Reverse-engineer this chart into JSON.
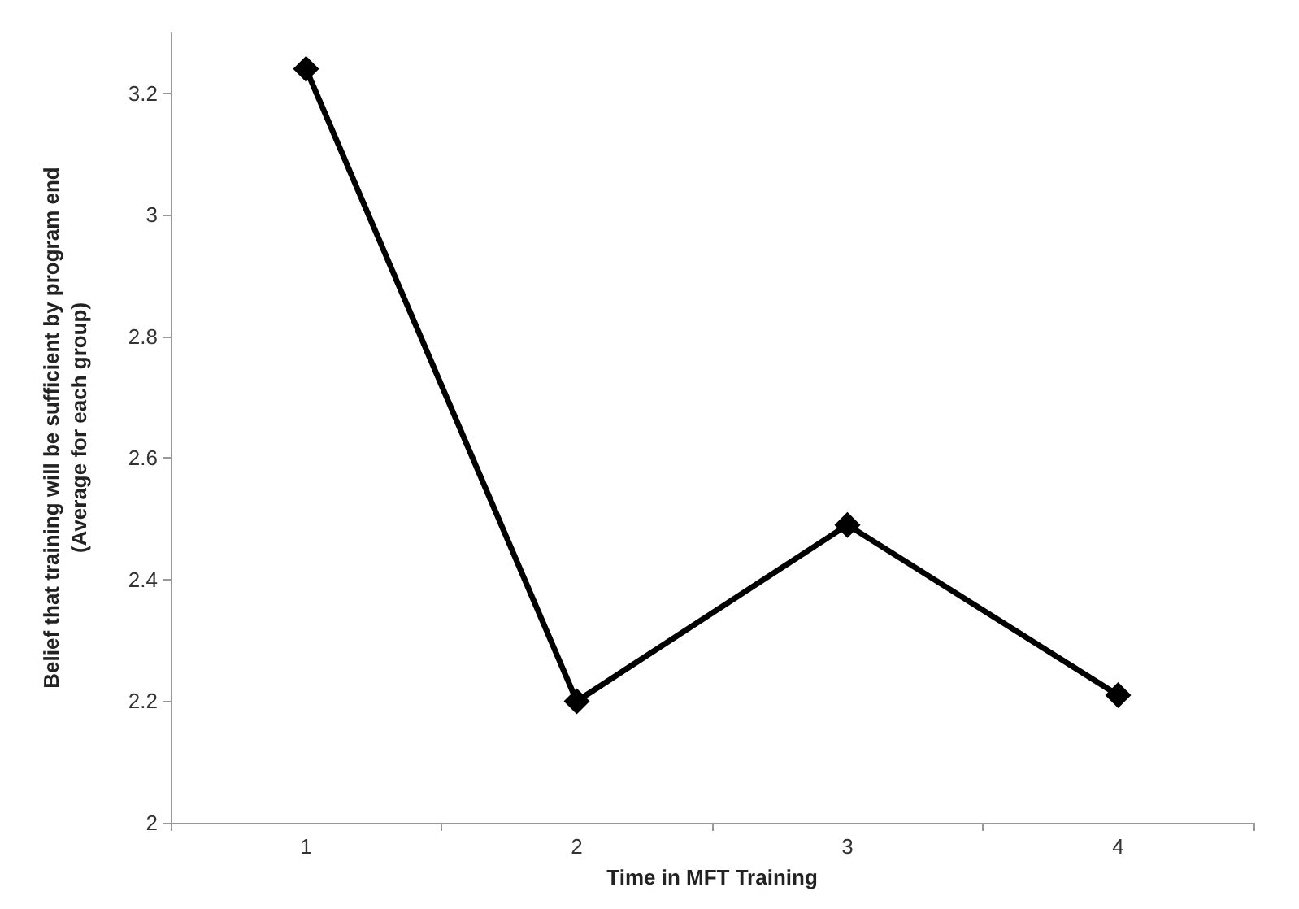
{
  "chart_data": {
    "type": "line",
    "xlabel": "Time in MFT Training",
    "ylabel": "Belief that training will be sufficient by program end\n(Average for each group)",
    "categories": [
      "1",
      "2",
      "3",
      "4"
    ],
    "series": [
      {
        "color": "#000000",
        "values": [
          3.24,
          2.2,
          2.49,
          2.21
        ]
      }
    ],
    "ylim": [
      2,
      3.3
    ],
    "yticks": [
      2,
      2.2,
      2.4,
      2.6,
      2.8,
      3,
      3.2
    ],
    "grid": false,
    "marker": "diamond",
    "line_style": "solid"
  }
}
